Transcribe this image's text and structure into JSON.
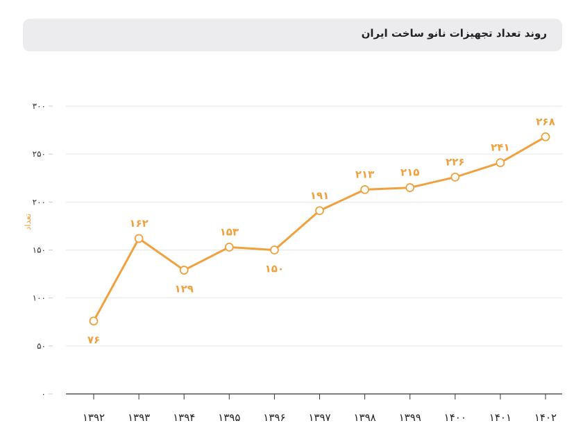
{
  "chart_data": {
    "type": "line",
    "title": "روند تعداد تجهیزات نانو ساخت ایران",
    "xlabel": "",
    "ylabel": "تعداد",
    "ylim": [
      0,
      300
    ],
    "grid": true,
    "y_ticks": [
      0,
      50,
      100,
      150,
      200,
      250,
      300
    ],
    "y_tick_labels": [
      "۰",
      "۵۰",
      "۱۰۰",
      "۱۵۰",
      "۲۰۰",
      "۲۵۰",
      "۳۰۰"
    ],
    "categories": [
      "۱۳۹۲",
      "۱۳۹۳",
      "۱۳۹۴",
      "۱۳۹۵",
      "۱۳۹۶",
      "۱۳۹۷",
      "۱۳۹۸",
      "۱۳۹۹",
      "۱۴۰۰",
      "۱۴۰۱",
      "۱۴۰۲"
    ],
    "values": [
      76,
      162,
      129,
      153,
      150,
      191,
      213,
      215,
      226,
      241,
      268
    ],
    "data_labels": [
      "۷۶",
      "۱۶۲",
      "۱۲۹",
      "۱۵۳",
      "۱۵۰",
      "۱۹۱",
      "۲۱۳",
      "۲۱۵",
      "۲۲۶",
      "۲۴۱",
      "۲۶۸"
    ],
    "label_position": [
      "below",
      "above",
      "below",
      "above",
      "below",
      "above",
      "above",
      "above",
      "above",
      "above",
      "above"
    ],
    "line_color": "#f0a03c"
  }
}
